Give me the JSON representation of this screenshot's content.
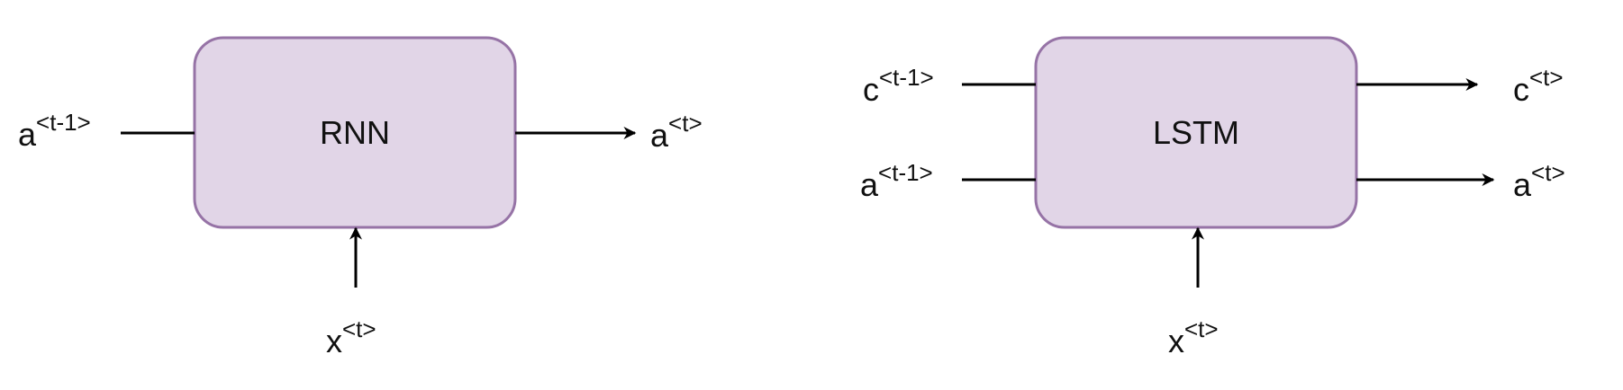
{
  "colors": {
    "box_fill": "#e1d5e7",
    "box_stroke": "#9673a6",
    "line": "#000000",
    "text": "#111111"
  },
  "rnn": {
    "title": "RNN",
    "input_left": {
      "main": "a",
      "sup": "<t-1>"
    },
    "output_right": {
      "main": "a",
      "sup": "<t>"
    },
    "input_bottom": {
      "main": "x",
      "sup": "<t>"
    }
  },
  "lstm": {
    "title": "LSTM",
    "input_c": {
      "main": "c",
      "sup": "<t-1>"
    },
    "input_a": {
      "main": "a",
      "sup": "<t-1>"
    },
    "output_c": {
      "main": "c",
      "sup": "<t>"
    },
    "output_a": {
      "main": "a",
      "sup": "<t>"
    },
    "input_bottom": {
      "main": "x",
      "sup": "<t>"
    }
  }
}
